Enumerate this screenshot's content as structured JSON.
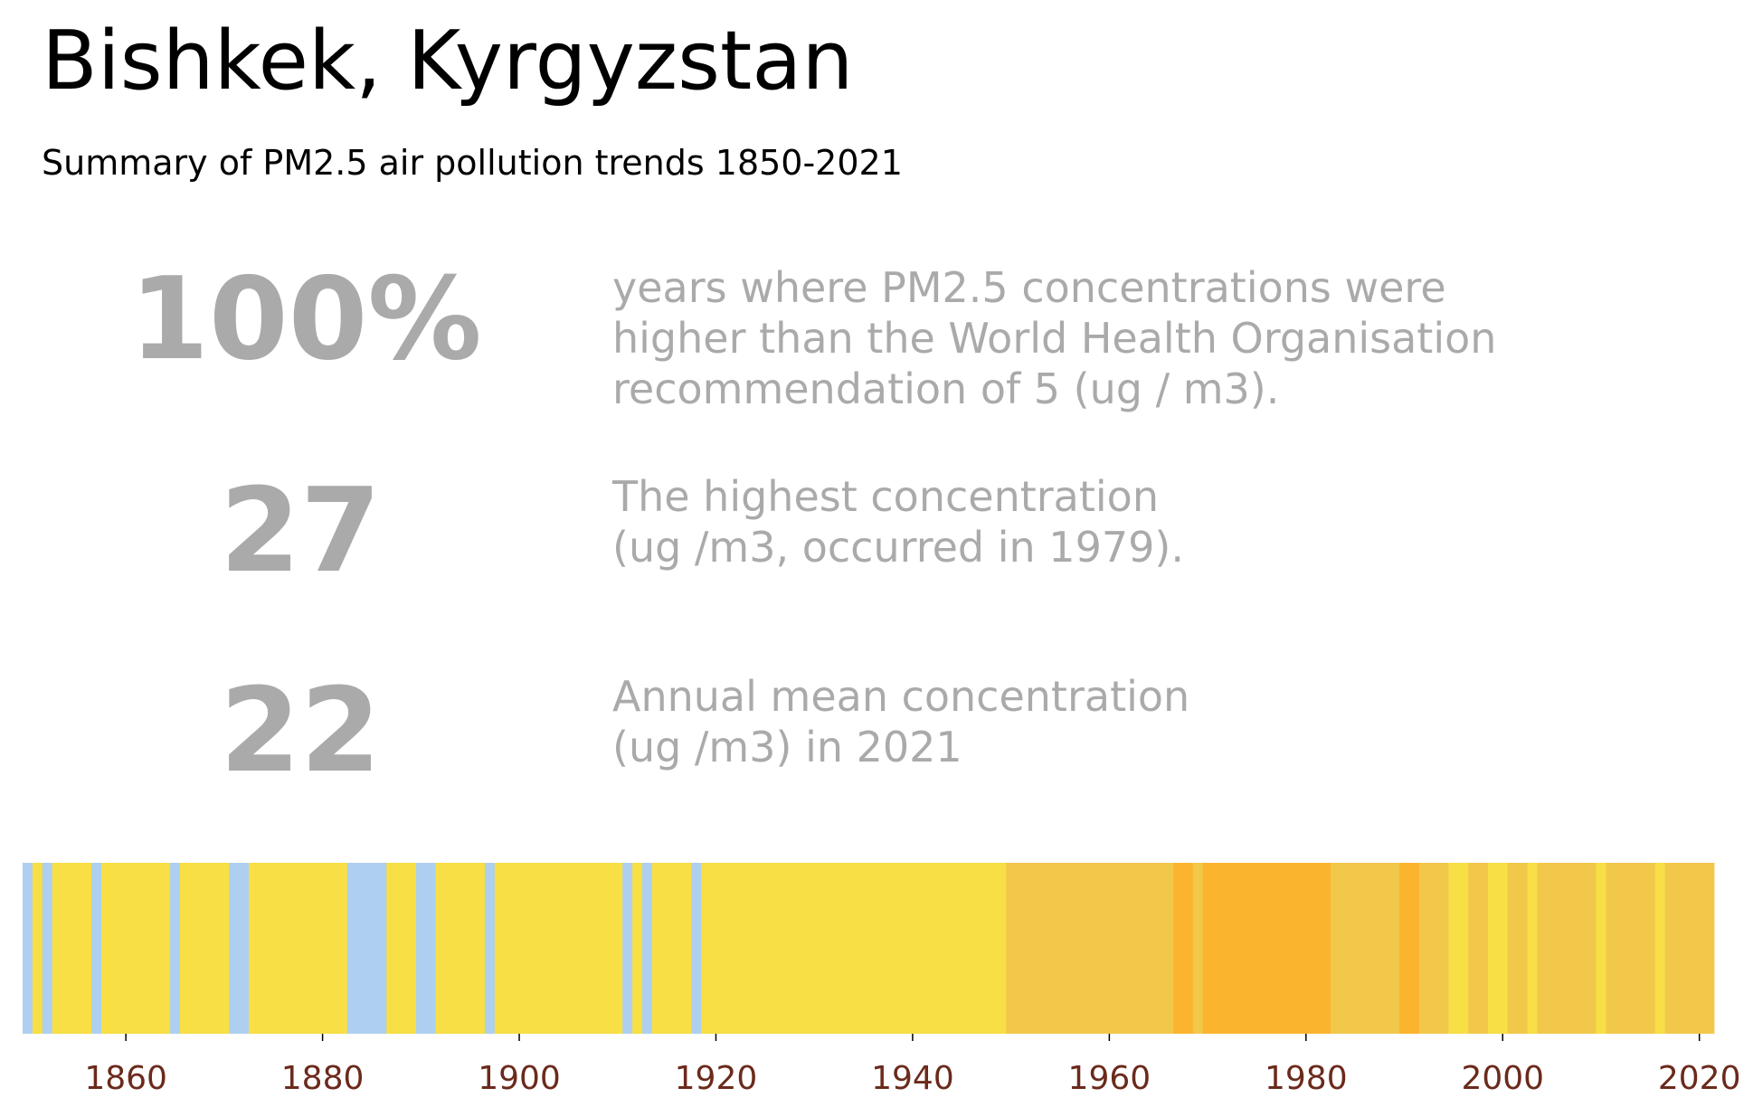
{
  "title": "Bishkek, Kyrgyzstan",
  "subtitle": "Summary of PM2.5 air pollution trends 1850-2021",
  "stats": [
    {
      "value": "100%",
      "desc": [
        "years where PM2.5 concentrations were",
        "higher than the World Health Organisation",
        "recommendation of 5 (ug / m3)."
      ]
    },
    {
      "value": "27",
      "desc": [
        "The highest concentration",
        "(ug /m3, occurred in 1979)."
      ]
    },
    {
      "value": "22",
      "desc": [
        "Annual mean concentration",
        "(ug /m3) in 2021"
      ]
    }
  ],
  "colors": {
    "blue": "#aecff0",
    "yellow": "#f7df45",
    "gold": "#f2c84b",
    "orange": "#fbb42e",
    "tick_label": "#6b2a1c",
    "stat_text": "#aaaaaa"
  },
  "chart_data": {
    "type": "heatmap",
    "x_range": [
      1850,
      2021
    ],
    "xticks": [
      1860,
      1880,
      1900,
      1920,
      1940,
      1960,
      1980,
      2000,
      2020
    ],
    "color_segments": [
      {
        "start": 1850,
        "end": 1850,
        "color": "blue"
      },
      {
        "start": 1851,
        "end": 1851,
        "color": "yellow"
      },
      {
        "start": 1852,
        "end": 1852,
        "color": "blue"
      },
      {
        "start": 1853,
        "end": 1856,
        "color": "yellow"
      },
      {
        "start": 1857,
        "end": 1857,
        "color": "blue"
      },
      {
        "start": 1858,
        "end": 1864,
        "color": "yellow"
      },
      {
        "start": 1865,
        "end": 1865,
        "color": "blue"
      },
      {
        "start": 1866,
        "end": 1870,
        "color": "yellow"
      },
      {
        "start": 1871,
        "end": 1872,
        "color": "blue"
      },
      {
        "start": 1873,
        "end": 1882,
        "color": "yellow"
      },
      {
        "start": 1883,
        "end": 1886,
        "color": "blue"
      },
      {
        "start": 1887,
        "end": 1889,
        "color": "yellow"
      },
      {
        "start": 1890,
        "end": 1891,
        "color": "blue"
      },
      {
        "start": 1892,
        "end": 1896,
        "color": "yellow"
      },
      {
        "start": 1897,
        "end": 1897,
        "color": "blue"
      },
      {
        "start": 1898,
        "end": 1910,
        "color": "yellow"
      },
      {
        "start": 1911,
        "end": 1911,
        "color": "blue"
      },
      {
        "start": 1912,
        "end": 1912,
        "color": "yellow"
      },
      {
        "start": 1913,
        "end": 1913,
        "color": "blue"
      },
      {
        "start": 1914,
        "end": 1917,
        "color": "yellow"
      },
      {
        "start": 1918,
        "end": 1918,
        "color": "blue"
      },
      {
        "start": 1919,
        "end": 1949,
        "color": "yellow"
      },
      {
        "start": 1950,
        "end": 1966,
        "color": "gold"
      },
      {
        "start": 1967,
        "end": 1968,
        "color": "orange"
      },
      {
        "start": 1969,
        "end": 1969,
        "color": "gold"
      },
      {
        "start": 1970,
        "end": 1982,
        "color": "orange"
      },
      {
        "start": 1983,
        "end": 1989,
        "color": "gold"
      },
      {
        "start": 1990,
        "end": 1991,
        "color": "orange"
      },
      {
        "start": 1992,
        "end": 1994,
        "color": "gold"
      },
      {
        "start": 1995,
        "end": 1996,
        "color": "yellow"
      },
      {
        "start": 1997,
        "end": 1998,
        "color": "gold"
      },
      {
        "start": 1999,
        "end": 2000,
        "color": "yellow"
      },
      {
        "start": 2001,
        "end": 2002,
        "color": "gold"
      },
      {
        "start": 2003,
        "end": 2003,
        "color": "yellow"
      },
      {
        "start": 2004,
        "end": 2009,
        "color": "gold"
      },
      {
        "start": 2010,
        "end": 2010,
        "color": "yellow"
      },
      {
        "start": 2011,
        "end": 2015,
        "color": "gold"
      },
      {
        "start": 2016,
        "end": 2016,
        "color": "yellow"
      },
      {
        "start": 2017,
        "end": 2021,
        "color": "gold"
      }
    ]
  }
}
